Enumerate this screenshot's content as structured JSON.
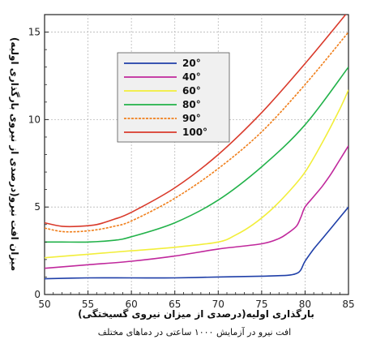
{
  "chart_data": {
    "type": "line",
    "xlabel": "بارگذاری اولیه(درصدی از میزان نیروی گسیختگی)",
    "ylabel": "میزان افت نیرو(درصدی از نیروی بارگذاری اولیه)",
    "caption": "افت نیرو در آزمایش ۱۰۰۰ ساعتی در دماهای مختلف",
    "xlim": [
      50,
      85
    ],
    "ylim": [
      0,
      16
    ],
    "xticks": [
      50,
      55,
      60,
      65,
      70,
      75,
      80,
      85
    ],
    "yticks": [
      0,
      5,
      10,
      15
    ],
    "grid": true,
    "legend_position": "top-left",
    "series": [
      {
        "name": "20°",
        "color": "#1f3fa8",
        "x": [
          50,
          55,
          60,
          65,
          70,
          75,
          78,
          79,
          79.5,
          80,
          81,
          82,
          83,
          84,
          85
        ],
        "y": [
          0.9,
          0.95,
          0.95,
          0.95,
          1.0,
          1.05,
          1.1,
          1.2,
          1.4,
          1.9,
          2.6,
          3.2,
          3.8,
          4.4,
          5.0
        ]
      },
      {
        "name": "40°",
        "color": "#c0289c",
        "x": [
          50,
          55,
          60,
          65,
          70,
          75,
          77,
          78,
          79,
          79.5,
          80,
          81,
          82,
          83,
          84,
          85
        ],
        "y": [
          1.5,
          1.7,
          1.9,
          2.2,
          2.6,
          2.9,
          3.2,
          3.5,
          3.9,
          4.4,
          5.0,
          5.6,
          6.2,
          6.9,
          7.7,
          8.5
        ]
      },
      {
        "name": "60°",
        "color": "#f2ee3a",
        "x": [
          50,
          55,
          60,
          65,
          70,
          72,
          74,
          76,
          78,
          80,
          82,
          84,
          85
        ],
        "y": [
          2.1,
          2.3,
          2.5,
          2.7,
          3.0,
          3.4,
          4.0,
          4.8,
          5.8,
          7.0,
          8.7,
          10.6,
          11.7
        ]
      },
      {
        "name": "80°",
        "color": "#22b24a",
        "x": [
          50,
          52,
          55,
          58,
          60,
          65,
          70,
          75,
          80,
          85
        ],
        "y": [
          3.0,
          3.0,
          3.0,
          3.1,
          3.3,
          4.1,
          5.4,
          7.3,
          9.7,
          13.0
        ]
      },
      {
        "name": "90°",
        "color": "#f07f1b",
        "x": [
          50,
          52,
          54,
          56,
          58,
          60,
          65,
          70,
          75,
          80,
          85
        ],
        "y": [
          3.8,
          3.6,
          3.6,
          3.7,
          3.9,
          4.2,
          5.5,
          7.2,
          9.3,
          12.0,
          15.0
        ]
      },
      {
        "name": "100°",
        "color": "#d93a2b",
        "x": [
          50,
          52,
          54,
          56,
          58,
          60,
          65,
          70,
          75,
          80,
          85
        ],
        "y": [
          4.1,
          3.9,
          3.9,
          4.0,
          4.3,
          4.7,
          6.1,
          8.0,
          10.4,
          13.2,
          16.2
        ]
      }
    ]
  }
}
